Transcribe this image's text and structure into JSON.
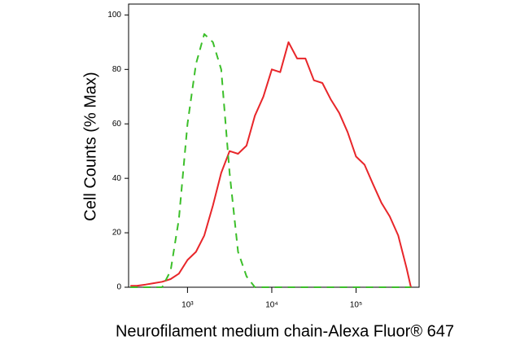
{
  "chart_data": {
    "type": "line",
    "x_label": "Neurofilament medium chain-Alexa Fluor® 647",
    "y_label": "Cell Counts (% Max)",
    "x_scale": "log",
    "x": [
      210,
      250,
      320,
      400,
      500,
      630,
      790,
      1000,
      1260,
      1580,
      2000,
      2510,
      3160,
      3980,
      5010,
      6310,
      7940,
      10000,
      12600,
      15800,
      20000,
      25100,
      31600,
      39800,
      50100,
      63100,
      79400,
      100000,
      126000,
      158000,
      200000,
      251000,
      316000,
      398000,
      447000
    ],
    "series": [
      {
        "color": "#e8262a",
        "dash": false,
        "values": [
          0.5,
          0.5,
          1,
          1.5,
          2,
          3,
          5,
          10,
          13,
          19,
          30,
          42,
          50,
          49,
          52,
          63,
          70,
          80,
          79,
          90,
          84,
          84,
          76,
          75,
          69,
          64,
          57,
          48,
          45,
          38,
          31,
          26,
          19,
          7,
          0
        ]
      },
      {
        "color": "#3cbf2a",
        "dash": true,
        "values": [
          0,
          0,
          0,
          0,
          0,
          6,
          25,
          60,
          82,
          93,
          90,
          80,
          42,
          13,
          4,
          0,
          0,
          0,
          0,
          0,
          0,
          0,
          0,
          0,
          0,
          0,
          0,
          0,
          0,
          0,
          0,
          0,
          0,
          0,
          0
        ]
      }
    ],
    "xlim": [
      200,
      560000
    ],
    "ylim": [
      0,
      104
    ],
    "xticks": [
      {
        "value": 1000,
        "label": "10³"
      },
      {
        "value": 10000,
        "label": "10⁴"
      },
      {
        "value": 100000,
        "label": "10⁵"
      }
    ],
    "yticks": [
      0,
      20,
      40,
      60,
      80,
      100
    ]
  }
}
